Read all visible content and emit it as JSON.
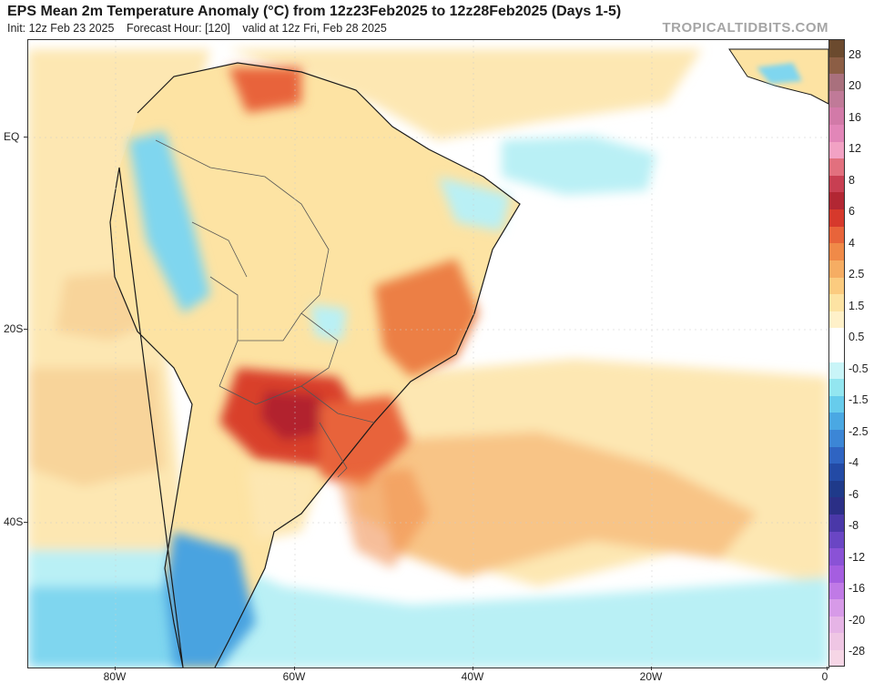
{
  "header": {
    "title": "EPS Mean 2m Temperature Anomaly (°C) from 12z23Feb2025 to 12z28Feb2025 (Days 1-5)",
    "init": "Init: 12z Feb 23 2025",
    "forecast_hour": "Forecast Hour: [120]",
    "valid": "valid at 12z Fri, Feb 28 2025",
    "brand": "TROPICALTIDBITS.COM"
  },
  "axes": {
    "lat_labels": [
      "EQ",
      "20S",
      "40S"
    ],
    "lon_labels": [
      "80W",
      "60W",
      "40W",
      "20W",
      "0"
    ]
  },
  "colorbar": {
    "labels": [
      "28",
      "20",
      "16",
      "12",
      "8",
      "6",
      "4",
      "2.5",
      "1.5",
      "0.5",
      "-0.5",
      "-1.5",
      "-2.5",
      "-4",
      "-6",
      "-8",
      "-12",
      "-16",
      "-20",
      "-28"
    ],
    "colors": [
      "#6b4a2e",
      "#8c5e45",
      "#a9707d",
      "#c07a98",
      "#d27aa8",
      "#e286b8",
      "#f2a2c4",
      "#e2707e",
      "#c83f52",
      "#b22733",
      "#d6392c",
      "#e8643a",
      "#f08a48",
      "#f6ad63",
      "#fbcb7f",
      "#fde3a3",
      "#fff1c9",
      "#ffffff",
      "#ffffff",
      "#c9f5f8",
      "#93e6f0",
      "#67ccec",
      "#4aa8e3",
      "#3c86d6",
      "#2f64c2",
      "#234aa5",
      "#1f3a8a",
      "#2b2f86",
      "#4a38a8",
      "#6a46c4",
      "#8a52d6",
      "#a55ee0",
      "#c07ae6",
      "#d79ae8",
      "#e6b4e6",
      "#efc6e4",
      "#f6d6e6"
    ]
  },
  "map_colors": {
    "ocean_neutral": "#ffffff",
    "warm_light": "#fde7b2",
    "warm_mid": "#f8b874",
    "warm_strong": "#ec7f45",
    "warm_hot": "#d9412c",
    "warm_extreme": "#b2202f",
    "cool_light": "#b9f0f5",
    "cool_mid": "#7fd6ef",
    "cool_strong": "#4aa3e0",
    "cool_deep": "#2f6fc4",
    "coast": "#1a1a1a",
    "border": "#555555"
  }
}
